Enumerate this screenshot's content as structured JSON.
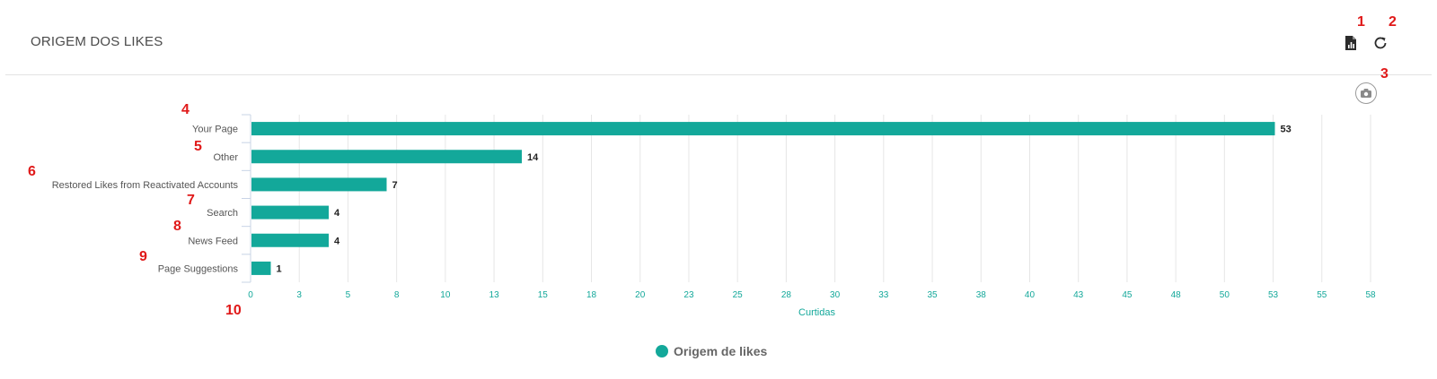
{
  "panel": {
    "title": "ORIGEM DOS LIKES"
  },
  "toolbar": {
    "pdf_icon": "pdf-export-icon",
    "refresh_icon": "refresh-icon",
    "camera_icon": "camera-icon"
  },
  "markers": [
    "1",
    "2",
    "3",
    "4",
    "5",
    "6",
    "7",
    "8",
    "9",
    "10"
  ],
  "colors": {
    "bar": "#13a89a",
    "axis_text": "#13a89a",
    "marker": "#e01919"
  },
  "chart_data": {
    "type": "bar",
    "orientation": "horizontal",
    "categories": [
      "Your Page",
      "Other",
      "Restored Likes from Reactivated Accounts",
      "Search",
      "News Feed",
      "Page Suggestions"
    ],
    "series": [
      {
        "name": "Origem de likes",
        "values": [
          53,
          14,
          7,
          4,
          4,
          1
        ]
      }
    ],
    "xlabel": "Curtidas",
    "xlim": [
      0,
      58
    ],
    "xticks": [
      "0",
      "3",
      "5",
      "8",
      "10",
      "13",
      "15",
      "18",
      "20",
      "23",
      "25",
      "28",
      "30",
      "33",
      "35",
      "38",
      "40",
      "43",
      "45",
      "48",
      "50",
      "53",
      "55",
      "58"
    ],
    "grid": true,
    "legend": "bottom-center"
  }
}
